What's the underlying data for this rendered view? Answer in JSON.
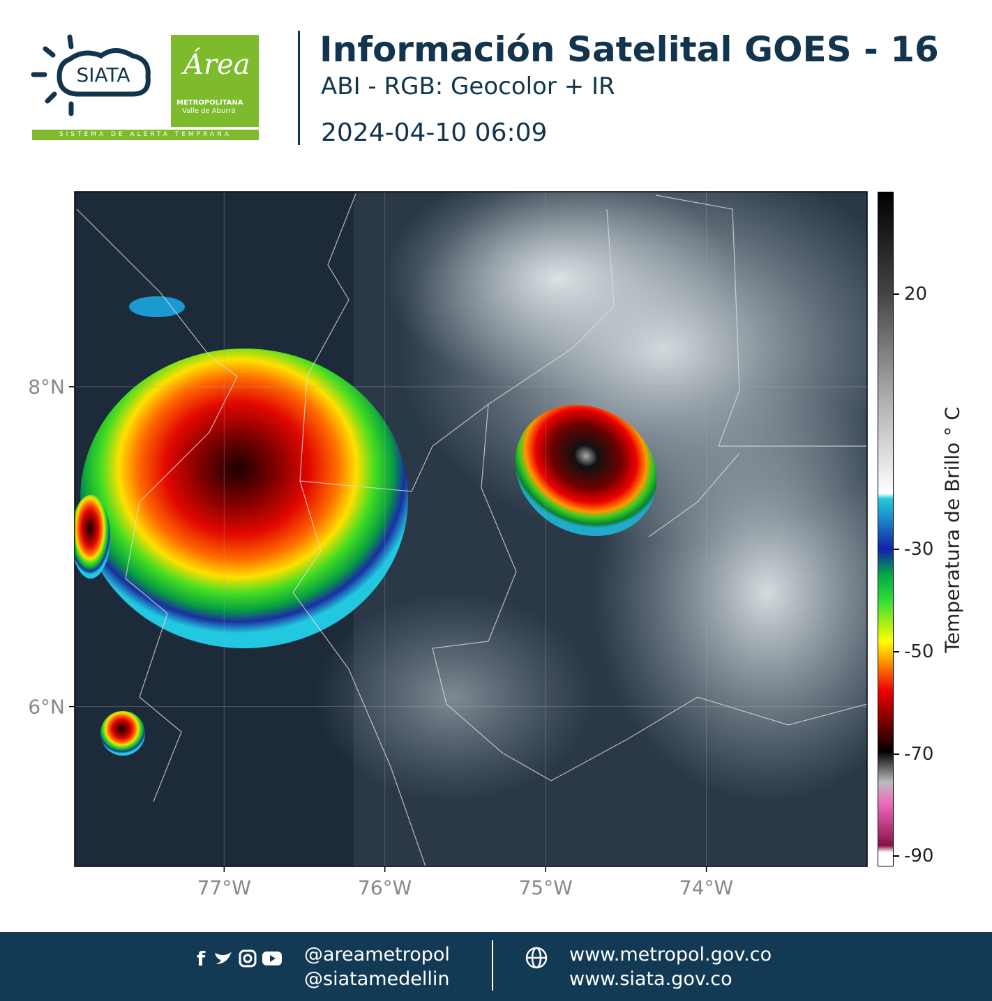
{
  "header": {
    "logo_siata": "SIATA",
    "logo_area": "Área",
    "logo_metropolitana": "METROPOLITANA",
    "logo_valle": "Valle de Aburrá",
    "logo_tagline": "SISTEMA DE ALERTA TEMPRANA",
    "title": "Información Satelital GOES - 16",
    "subtitle": "ABI - RGB: Geocolor + IR",
    "datetime": "2024-04-10 06:09"
  },
  "map": {
    "xlim": [
      -77.93,
      -73.0
    ],
    "ylim": [
      5.0,
      9.22
    ],
    "xticks": [
      {
        "value": -77,
        "label": "77°W"
      },
      {
        "value": -76,
        "label": "76°W"
      },
      {
        "value": -75,
        "label": "75°W"
      },
      {
        "value": -74,
        "label": "74°W"
      }
    ],
    "yticks": [
      {
        "value": 8,
        "label": "8°N"
      },
      {
        "value": 6,
        "label": "6°N"
      }
    ],
    "colorbar": {
      "label": "Temperatura de Brillo ° C",
      "lim": [
        -92,
        40
      ],
      "ticks": [
        20,
        -30,
        -50,
        -70,
        -90
      ]
    }
  },
  "footer": {
    "social": [
      "@areametropol",
      "@siatamedellin"
    ],
    "websites": [
      "www.metropol.gov.co",
      "www.siata.gov.co"
    ]
  }
}
